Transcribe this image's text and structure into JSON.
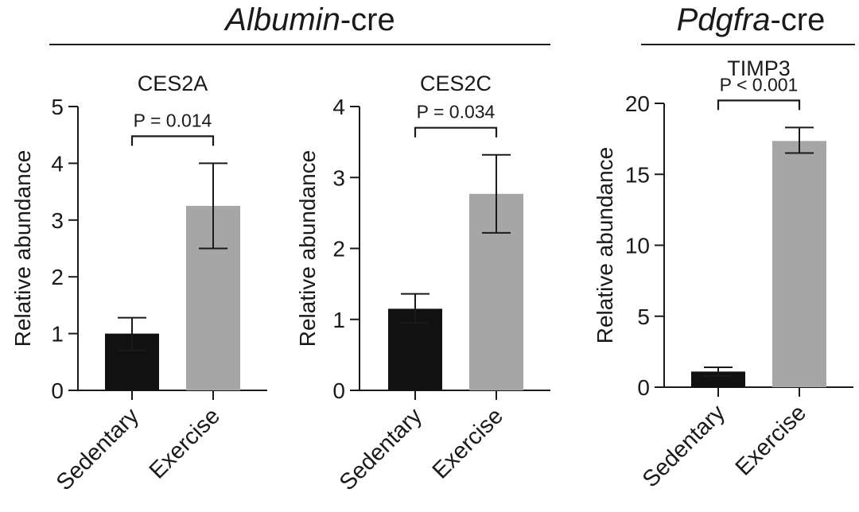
{
  "groups": [
    {
      "label_italic": "Albumin",
      "label_suffix": "-cre"
    },
    {
      "label_italic": "Pdgfra",
      "label_suffix": "-cre"
    }
  ],
  "colors": {
    "sedentary": "#111111",
    "exercise": "#a6a6a6",
    "axis": "#1a1a1a"
  },
  "chart_data": [
    {
      "type": "bar",
      "title": "CES2A",
      "ylabel": "Relative abundance",
      "xlabel": "",
      "categories": [
        "Sedentary",
        "Exercise"
      ],
      "values": [
        1.0,
        3.25
      ],
      "error_low": [
        0.7,
        2.5
      ],
      "error_high": [
        1.28,
        4.0
      ],
      "ylim": [
        0,
        5
      ],
      "yticks": [
        0,
        1,
        2,
        3,
        4,
        5
      ],
      "annotation": "P = 0.014",
      "group": 0
    },
    {
      "type": "bar",
      "title": "CES2C",
      "ylabel": "Relative abundance",
      "xlabel": "",
      "categories": [
        "Sedentary",
        "Exercise"
      ],
      "values": [
        1.15,
        2.77
      ],
      "error_low": [
        0.95,
        2.22
      ],
      "error_high": [
        1.36,
        3.32
      ],
      "ylim": [
        0,
        4
      ],
      "yticks": [
        0,
        1,
        2,
        3,
        4
      ],
      "annotation": "P = 0.034",
      "group": 0
    },
    {
      "type": "bar",
      "title": "TIMP3",
      "ylabel": "Relative abundance",
      "xlabel": "",
      "categories": [
        "Sedentary",
        "Exercise"
      ],
      "values": [
        1.1,
        17.35
      ],
      "error_low": [
        0.8,
        16.5
      ],
      "error_high": [
        1.4,
        18.3
      ],
      "ylim": [
        0,
        20
      ],
      "yticks": [
        0,
        5,
        10,
        15,
        20
      ],
      "annotation": "P < 0.001",
      "group": 1
    }
  ]
}
